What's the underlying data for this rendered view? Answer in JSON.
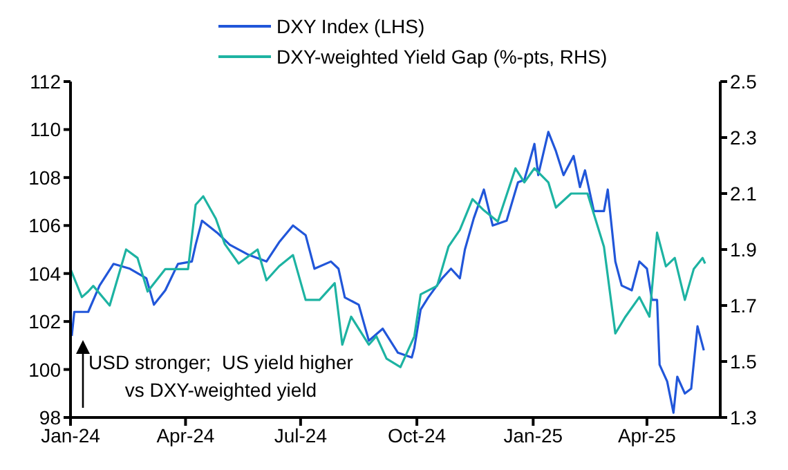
{
  "chart_data": {
    "type": "line",
    "legend": "top",
    "line_style": "solid",
    "marker": "none",
    "xlim": [
      "2024-01-01",
      "2025-05-29"
    ],
    "xticks": [
      {
        "value": "2024-01-01",
        "label": "Jan-24"
      },
      {
        "value": "2024-04-01",
        "label": "Apr-24"
      },
      {
        "value": "2024-07-01",
        "label": "Jul-24"
      },
      {
        "value": "2024-10-01",
        "label": "Oct-24"
      },
      {
        "value": "2025-01-01",
        "label": "Jan-25"
      },
      {
        "value": "2025-04-01",
        "label": "Apr-25"
      }
    ],
    "ylim": [
      98,
      112
    ],
    "yticks": [
      98,
      100,
      102,
      104,
      106,
      108,
      110,
      112
    ],
    "y2lim": [
      1.3,
      2.5
    ],
    "y2ticks": [
      1.3,
      1.5,
      1.7,
      1.9,
      2.1,
      2.3,
      2.5
    ],
    "annotations": [
      "USD stronger;  US yield higher\nvs DXY-weighted yield"
    ],
    "series": [
      {
        "name": "DXY Index (LHS)",
        "color": "#2156d9",
        "x": [
          "2024-01-02",
          "2024-01-04",
          "2024-01-15",
          "2024-01-24",
          "2024-02-04",
          "2024-02-17",
          "2024-03-01",
          "2024-03-07",
          "2024-03-16",
          "2024-03-26",
          "2024-04-06",
          "2024-04-09",
          "2024-04-14",
          "2024-04-26",
          "2024-05-06",
          "2024-05-20",
          "2024-06-04",
          "2024-06-14",
          "2024-06-25",
          "2024-07-05",
          "2024-07-12",
          "2024-07-25",
          "2024-07-31",
          "2024-08-05",
          "2024-08-16",
          "2024-08-24",
          "2024-09-04",
          "2024-09-16",
          "2024-09-27",
          "2024-09-29",
          "2024-10-04",
          "2024-10-10",
          "2024-10-21",
          "2024-10-28",
          "2024-11-04",
          "2024-11-08",
          "2024-11-15",
          "2024-11-23",
          "2024-11-30",
          "2024-12-11",
          "2024-12-20",
          "2024-12-25",
          "2025-01-02",
          "2025-01-05",
          "2025-01-13",
          "2025-01-19",
          "2025-01-25",
          "2025-02-02",
          "2025-02-07",
          "2025-02-11",
          "2025-02-18",
          "2025-02-26",
          "2025-03-01",
          "2025-03-07",
          "2025-03-12",
          "2025-03-20",
          "2025-03-26",
          "2025-04-01",
          "2025-04-05",
          "2025-04-09",
          "2025-04-11",
          "2025-04-17",
          "2025-04-22",
          "2025-04-25",
          "2025-05-01",
          "2025-05-06",
          "2025-05-11",
          "2025-05-16"
        ],
        "values": [
          101.4,
          102.4,
          102.4,
          103.5,
          104.4,
          104.2,
          103.8,
          102.7,
          103.3,
          104.4,
          104.5,
          105.2,
          106.2,
          105.7,
          105.2,
          104.8,
          104.5,
          105.3,
          106.0,
          105.6,
          104.2,
          104.5,
          104.2,
          103.0,
          102.7,
          101.2,
          101.7,
          100.7,
          100.5,
          100.9,
          102.5,
          103.0,
          103.8,
          104.2,
          103.8,
          105.0,
          106.3,
          107.5,
          106.0,
          106.2,
          107.8,
          107.9,
          109.4,
          108.1,
          109.9,
          109.1,
          108.1,
          108.9,
          107.6,
          108.3,
          106.6,
          106.6,
          107.5,
          104.5,
          103.5,
          103.3,
          104.5,
          104.2,
          102.9,
          102.9,
          100.2,
          99.5,
          98.2,
          99.7,
          99.0,
          99.2,
          101.8,
          100.8
        ]
      },
      {
        "name": "DXY-weighted Yield Gap (%-pts, RHS)",
        "color": "#1db3a2",
        "axis": "y2",
        "x": [
          "2024-01-01",
          "2024-01-10",
          "2024-01-15",
          "2024-01-19",
          "2024-02-01",
          "2024-02-14",
          "2024-02-23",
          "2024-03-02",
          "2024-03-16",
          "2024-04-03",
          "2024-04-09",
          "2024-04-15",
          "2024-04-25",
          "2024-05-02",
          "2024-05-13",
          "2024-05-28",
          "2024-06-04",
          "2024-06-14",
          "2024-06-25",
          "2024-07-05",
          "2024-07-16",
          "2024-07-28",
          "2024-08-03",
          "2024-08-10",
          "2024-08-24",
          "2024-08-30",
          "2024-09-07",
          "2024-09-18",
          "2024-09-29",
          "2024-10-04",
          "2024-10-17",
          "2024-10-26",
          "2024-11-04",
          "2024-11-14",
          "2024-11-23",
          "2024-12-04",
          "2024-12-18",
          "2024-12-25",
          "2025-01-02",
          "2025-01-13",
          "2025-01-19",
          "2025-01-31",
          "2025-02-13",
          "2025-02-26",
          "2025-03-07",
          "2025-03-15",
          "2025-03-26",
          "2025-04-03",
          "2025-04-09",
          "2025-04-16",
          "2025-04-23",
          "2025-05-01",
          "2025-05-08",
          "2025-05-15",
          "2025-05-17"
        ],
        "values": [
          1.83,
          1.73,
          1.75,
          1.77,
          1.7,
          1.9,
          1.87,
          1.75,
          1.83,
          1.83,
          2.06,
          2.09,
          2.01,
          1.92,
          1.85,
          1.9,
          1.79,
          1.84,
          1.88,
          1.72,
          1.72,
          1.78,
          1.56,
          1.66,
          1.56,
          1.59,
          1.51,
          1.48,
          1.59,
          1.74,
          1.77,
          1.91,
          1.97,
          2.08,
          2.04,
          2.0,
          2.19,
          2.14,
          2.19,
          2.14,
          2.05,
          2.1,
          2.1,
          1.91,
          1.6,
          1.66,
          1.73,
          1.66,
          1.96,
          1.84,
          1.87,
          1.72,
          1.83,
          1.87,
          1.85
        ]
      }
    ]
  }
}
